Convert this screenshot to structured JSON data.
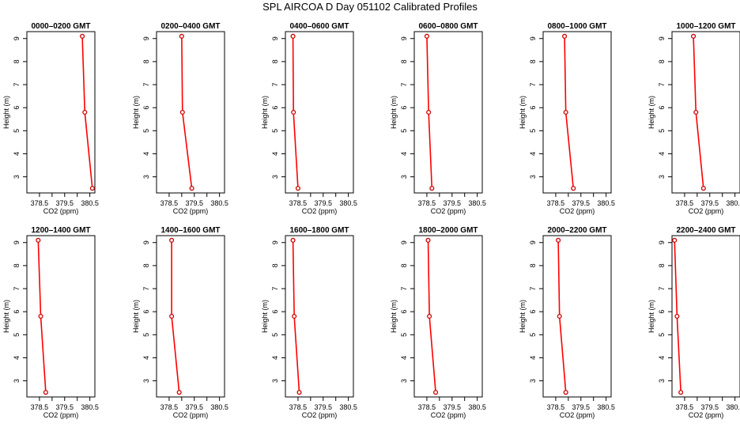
{
  "title": "SPL AIRCOA D  Day 051102  Calibrated Profiles",
  "colors": {
    "line": "#ff0000",
    "marker": "#cc0000",
    "axis": "#000000"
  },
  "chart_data": {
    "type": "line",
    "layout": "small-multiples 2 rows x 6 columns",
    "xlabel": "CO2 (ppm)",
    "ylabel": "Height (m)",
    "xlim": [
      378.0,
      380.7
    ],
    "ylim": [
      2.3,
      9.3
    ],
    "xticks": [
      378.5,
      379.0,
      379.5,
      380.0,
      380.5
    ],
    "xtick_labels": [
      "378.5",
      "",
      "379.5",
      "",
      "380.5"
    ],
    "yticks": [
      3,
      4,
      5,
      6,
      7,
      8,
      9
    ],
    "ytick_labels": [
      "3",
      "4",
      "5",
      "6",
      "7",
      "8",
      "9"
    ],
    "panels": [
      {
        "title": "0000–0200 GMT",
        "x": [
          380.2,
          380.3,
          380.6
        ],
        "y": [
          9.1,
          5.8,
          2.5
        ]
      },
      {
        "title": "0200–0400 GMT",
        "x": [
          379.0,
          379.03,
          379.4
        ],
        "y": [
          9.1,
          5.8,
          2.5
        ]
      },
      {
        "title": "0400–0600 GMT",
        "x": [
          378.3,
          378.32,
          378.5
        ],
        "y": [
          9.1,
          5.8,
          2.5
        ]
      },
      {
        "title": "0600–0800 GMT",
        "x": [
          378.5,
          378.57,
          378.7
        ],
        "y": [
          9.1,
          5.8,
          2.5
        ]
      },
      {
        "title": "0800–1000 GMT",
        "x": [
          378.85,
          378.9,
          379.2
        ],
        "y": [
          9.1,
          5.8,
          2.5
        ]
      },
      {
        "title": "1000–1200 GMT",
        "x": [
          378.85,
          378.95,
          379.25
        ],
        "y": [
          9.1,
          5.8,
          2.5
        ]
      },
      {
        "title": "1200–1400 GMT",
        "x": [
          378.45,
          378.55,
          378.75
        ],
        "y": [
          9.1,
          5.8,
          2.5
        ]
      },
      {
        "title": "1400–1600 GMT",
        "x": [
          378.6,
          378.6,
          378.9
        ],
        "y": [
          9.1,
          5.8,
          2.5
        ]
      },
      {
        "title": "1600–1800 GMT",
        "x": [
          378.3,
          378.35,
          378.55
        ],
        "y": [
          9.1,
          5.8,
          2.5
        ]
      },
      {
        "title": "1800–2000 GMT",
        "x": [
          378.55,
          378.6,
          378.85
        ],
        "y": [
          9.1,
          5.8,
          2.5
        ]
      },
      {
        "title": "2000–2200 GMT",
        "x": [
          378.6,
          378.65,
          378.9
        ],
        "y": [
          9.1,
          5.8,
          2.5
        ]
      },
      {
        "title": "2200–2400 GMT",
        "x": [
          378.1,
          378.2,
          378.35
        ],
        "y": [
          9.1,
          5.8,
          2.5
        ]
      }
    ]
  }
}
